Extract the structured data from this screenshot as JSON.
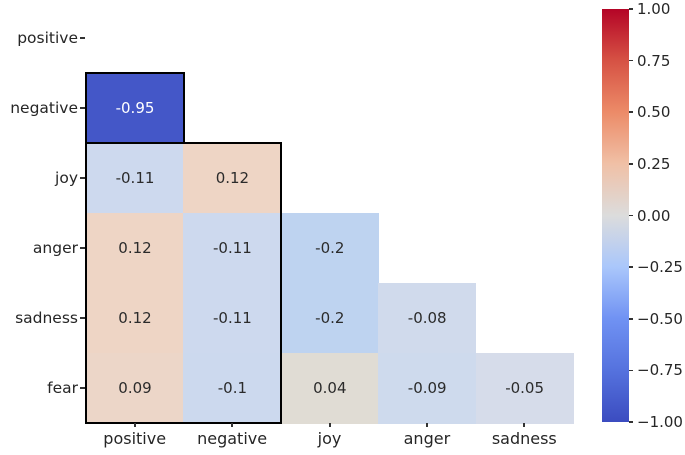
{
  "figure": {
    "background": "#ffffff",
    "title": ""
  },
  "chart_data": {
    "type": "heatmap",
    "subtype": "correlation-matrix-lower-triangle",
    "title": "",
    "xlabel": "",
    "ylabel": "",
    "colormap": "coolwarm",
    "vmin": -1.0,
    "vmax": 1.0,
    "grid": false,
    "rows": [
      "positive",
      "negative",
      "joy",
      "anger",
      "sadness",
      "fear"
    ],
    "cols": [
      "positive",
      "negative",
      "joy",
      "anger",
      "sadness"
    ],
    "cells": [
      {
        "row": "negative",
        "col": "positive",
        "value": -0.95,
        "label": "-0.95",
        "color": "#4457c8",
        "text_color": "#ffffff"
      },
      {
        "row": "joy",
        "col": "positive",
        "value": -0.11,
        "label": "-0.11",
        "color": "#cdd9ee",
        "text_color": "#2b2b2b"
      },
      {
        "row": "joy",
        "col": "negative",
        "value": 0.12,
        "label": "0.12",
        "color": "#eed5c5",
        "text_color": "#2b2b2b"
      },
      {
        "row": "anger",
        "col": "positive",
        "value": 0.12,
        "label": "0.12",
        "color": "#eed5c5",
        "text_color": "#2b2b2b"
      },
      {
        "row": "anger",
        "col": "negative",
        "value": -0.11,
        "label": "-0.11",
        "color": "#cdd9ee",
        "text_color": "#2b2b2b"
      },
      {
        "row": "anger",
        "col": "joy",
        "value": -0.2,
        "label": "-0.2",
        "color": "#bed3f0",
        "text_color": "#2b2b2b"
      },
      {
        "row": "sadness",
        "col": "positive",
        "value": 0.12,
        "label": "0.12",
        "color": "#eed5c5",
        "text_color": "#2b2b2b"
      },
      {
        "row": "sadness",
        "col": "negative",
        "value": -0.11,
        "label": "-0.11",
        "color": "#cdd9ee",
        "text_color": "#2b2b2b"
      },
      {
        "row": "sadness",
        "col": "joy",
        "value": -0.2,
        "label": "-0.2",
        "color": "#bed3f0",
        "text_color": "#2b2b2b"
      },
      {
        "row": "sadness",
        "col": "anger",
        "value": -0.08,
        "label": "-0.08",
        "color": "#d0daec",
        "text_color": "#2b2b2b"
      },
      {
        "row": "fear",
        "col": "positive",
        "value": 0.09,
        "label": "0.09",
        "color": "#ecd6c8",
        "text_color": "#2b2b2b"
      },
      {
        "row": "fear",
        "col": "negative",
        "value": -0.1,
        "label": "-0.1",
        "color": "#ccd9ee",
        "text_color": "#2b2b2b"
      },
      {
        "row": "fear",
        "col": "joy",
        "value": 0.04,
        "label": "0.04",
        "color": "#e0dcd4",
        "text_color": "#2b2b2b"
      },
      {
        "row": "fear",
        "col": "anger",
        "value": -0.09,
        "label": "-0.09",
        "color": "#cedaed",
        "text_color": "#2b2b2b"
      },
      {
        "row": "fear",
        "col": "sadness",
        "value": -0.05,
        "label": "-0.05",
        "color": "#d6dcea",
        "text_color": "#2b2b2b"
      }
    ],
    "outlines": [
      {
        "row": "negative",
        "col": "positive",
        "row_span": 1,
        "col_span": 1
      },
      {
        "row": "joy",
        "col": "positive",
        "row_span": 4,
        "col_span": 2
      }
    ],
    "outline_color": "#000000",
    "axis_tick_color": "#333333",
    "label_color": "#262626",
    "colorbar": {
      "position": "right",
      "tick_labels": [
        "1.00",
        "0.75",
        "0.50",
        "0.25",
        "0.00",
        "−0.25",
        "−0.50",
        "−0.75",
        "−1.00"
      ],
      "gradient": [
        {
          "pos": 0.0,
          "color": "#3b4cc0"
        },
        {
          "pos": 0.125,
          "color": "#5572de"
        },
        {
          "pos": 0.25,
          "color": "#7092f3"
        },
        {
          "pos": 0.375,
          "color": "#aac7fb"
        },
        {
          "pos": 0.5,
          "color": "#dcdcdc"
        },
        {
          "pos": 0.625,
          "color": "#f0c0a6"
        },
        {
          "pos": 0.75,
          "color": "#ec8b68"
        },
        {
          "pos": 0.875,
          "color": "#d65244"
        },
        {
          "pos": 1.0,
          "color": "#b40426"
        }
      ]
    }
  }
}
